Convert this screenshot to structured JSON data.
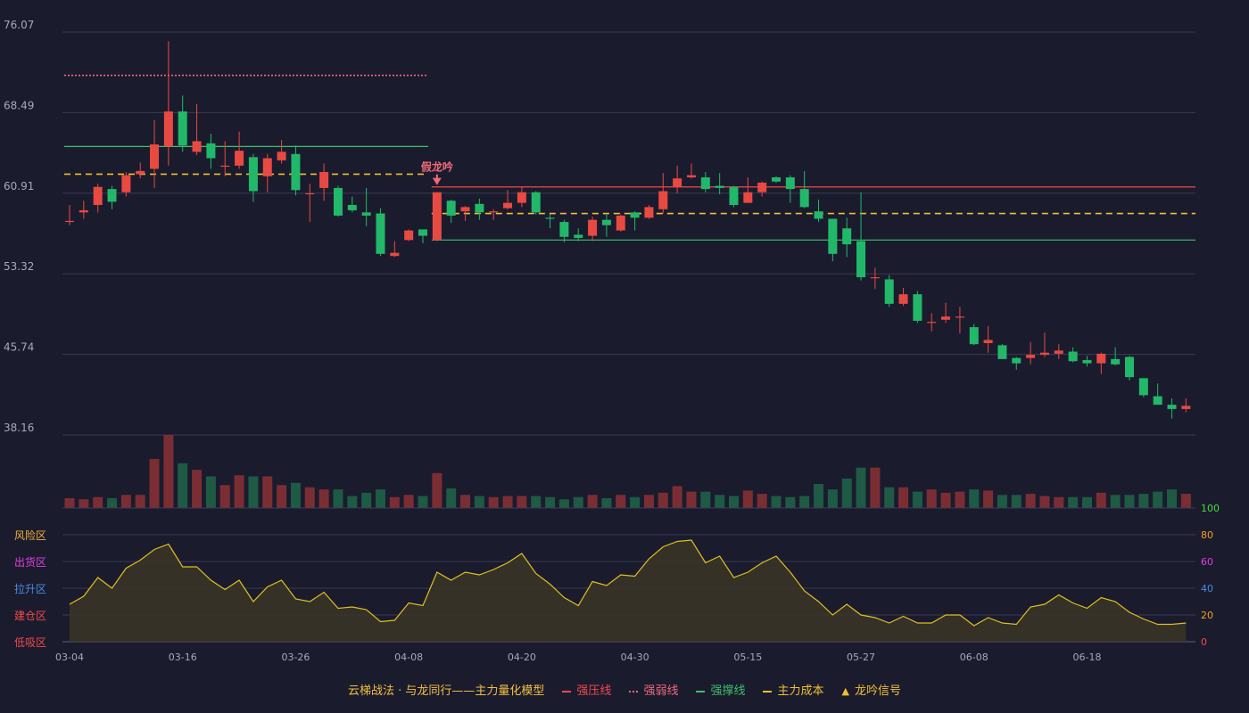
{
  "chart_data": [
    {
      "type": "candlestick",
      "y_axis": {
        "ylim": [
          38.16,
          76.07
        ],
        "ticks": [
          "76.07",
          "68.49",
          "60.91",
          "53.32",
          "45.74",
          "38.16"
        ]
      },
      "x_axis": {
        "ticks": [
          "03-04",
          "03-16",
          "03-26",
          "04-08",
          "04-20",
          "04-30",
          "05-15",
          "05-27",
          "06-08",
          "06-18"
        ]
      },
      "candles": [
        [
          58.2,
          58.3,
          59.8,
          57.9
        ],
        [
          59.1,
          59.3,
          60.2,
          58.5
        ],
        [
          59.8,
          61.5,
          61.8,
          59.1
        ],
        [
          61.3,
          60.1,
          61.6,
          59.4
        ],
        [
          61.0,
          62.6,
          62.9,
          60.6
        ],
        [
          62.7,
          63.0,
          63.8,
          62.3
        ],
        [
          63.2,
          65.5,
          67.8,
          61.4
        ],
        [
          65.3,
          68.6,
          75.2,
          63.5
        ],
        [
          68.6,
          65.4,
          70.1,
          64.8
        ],
        [
          64.8,
          65.8,
          69.3,
          64.5
        ],
        [
          65.6,
          64.2,
          66.5,
          63.2
        ],
        [
          63.4,
          63.5,
          65.8,
          62.5
        ],
        [
          63.5,
          64.9,
          66.7,
          63.2
        ],
        [
          64.3,
          61.1,
          64.6,
          60.1
        ],
        [
          62.5,
          64.2,
          64.6,
          61.0
        ],
        [
          64.0,
          64.8,
          65.9,
          63.7
        ],
        [
          64.6,
          61.2,
          65.4,
          60.7
        ],
        [
          60.8,
          60.9,
          61.8,
          58.2
        ],
        [
          61.4,
          62.9,
          63.7,
          60.2
        ],
        [
          61.4,
          58.8,
          61.6,
          58.7
        ],
        [
          59.8,
          59.3,
          60.6,
          59.1
        ],
        [
          59.1,
          58.8,
          61.4,
          57.8
        ],
        [
          59.0,
          55.2,
          59.5,
          55.0
        ],
        [
          55.0,
          55.3,
          56.4,
          54.9
        ],
        [
          56.5,
          57.4,
          57.5,
          56.4
        ],
        [
          57.5,
          56.9,
          57.4,
          56.2
        ],
        [
          56.5,
          61.0,
          61.0,
          56.4
        ],
        [
          60.2,
          58.8,
          60.3,
          58.1
        ],
        [
          59.2,
          59.6,
          59.7,
          58.3
        ],
        [
          59.9,
          59.1,
          60.4,
          58.4
        ],
        [
          59.1,
          59.2,
          59.4,
          58.4
        ],
        [
          59.5,
          60.0,
          61.2,
          59.4
        ],
        [
          60.0,
          61.0,
          61.5,
          59.6
        ],
        [
          61.0,
          59.1,
          61.1,
          58.9
        ],
        [
          58.6,
          58.5,
          58.9,
          57.6
        ],
        [
          58.2,
          56.8,
          58.4,
          56.3
        ],
        [
          57.0,
          56.7,
          57.6,
          56.4
        ],
        [
          56.9,
          58.4,
          58.7,
          56.4
        ],
        [
          58.4,
          57.9,
          59.0,
          56.8
        ],
        [
          57.4,
          58.8,
          58.9,
          57.3
        ],
        [
          59.1,
          58.6,
          59.2,
          57.4
        ],
        [
          58.6,
          59.6,
          59.8,
          58.5
        ],
        [
          59.4,
          61.1,
          62.8,
          59.0
        ],
        [
          61.5,
          62.3,
          63.5,
          60.9
        ],
        [
          62.4,
          62.6,
          63.7,
          62.3
        ],
        [
          62.4,
          61.3,
          62.9,
          61.0
        ],
        [
          61.6,
          61.4,
          62.8,
          60.8
        ],
        [
          61.5,
          59.8,
          61.6,
          59.6
        ],
        [
          60.0,
          61.0,
          62.4,
          60.0
        ],
        [
          61.0,
          61.9,
          62.0,
          60.6
        ],
        [
          62.4,
          62.0,
          62.5,
          61.9
        ],
        [
          62.4,
          61.3,
          62.6,
          60.0
        ],
        [
          61.3,
          59.6,
          63.0,
          59.5
        ],
        [
          59.2,
          58.5,
          60.3,
          58.2
        ],
        [
          58.5,
          55.2,
          58.4,
          54.5
        ],
        [
          57.6,
          56.1,
          58.6,
          54.9
        ],
        [
          56.4,
          53.0,
          61.0,
          52.7
        ],
        [
          53.0,
          53.0,
          53.9,
          51.9
        ],
        [
          52.8,
          50.5,
          53.2,
          50.2
        ],
        [
          50.5,
          51.4,
          52.0,
          50.3
        ],
        [
          51.4,
          48.9,
          51.7,
          48.7
        ],
        [
          48.7,
          48.8,
          49.6,
          47.9
        ],
        [
          49.0,
          49.3,
          50.6,
          48.7
        ],
        [
          49.3,
          49.3,
          50.2,
          47.7
        ],
        [
          48.3,
          46.7,
          48.6,
          46.6
        ],
        [
          46.8,
          47.1,
          48.4,
          45.9
        ],
        [
          46.6,
          45.3,
          46.7,
          45.3
        ],
        [
          45.4,
          44.9,
          45.5,
          44.3
        ],
        [
          45.4,
          45.7,
          46.9,
          44.8
        ],
        [
          45.7,
          45.9,
          47.8,
          45.5
        ],
        [
          45.8,
          46.1,
          46.7,
          45.3
        ],
        [
          46.0,
          45.1,
          46.4,
          45.0
        ],
        [
          45.2,
          44.9,
          45.6,
          44.6
        ],
        [
          44.9,
          45.8,
          45.9,
          43.9
        ],
        [
          45.3,
          44.8,
          46.4,
          44.7
        ],
        [
          45.5,
          43.6,
          45.6,
          43.3
        ],
        [
          43.5,
          41.9,
          43.5,
          41.7
        ],
        [
          41.8,
          41.0,
          43.0,
          41.0
        ],
        [
          41.0,
          40.6,
          41.6,
          39.7
        ],
        [
          40.6,
          40.9,
          41.6,
          40.3
        ]
      ],
      "volume": [
        9,
        8,
        10,
        9,
        12,
        12,
        45,
        67,
        41,
        35,
        29,
        21,
        30,
        29,
        29,
        21,
        23,
        19,
        17,
        17,
        11,
        14,
        17,
        10,
        12,
        11,
        32,
        18,
        12,
        11,
        10,
        11,
        11,
        11,
        10,
        8,
        10,
        12,
        9,
        12,
        10,
        12,
        14,
        20,
        15,
        15,
        12,
        11,
        16,
        13,
        11,
        10,
        11,
        22,
        17,
        27,
        37,
        37,
        19,
        19,
        15,
        17,
        14,
        15,
        17,
        16,
        12,
        12,
        13,
        11,
        10,
        10,
        10,
        14,
        12,
        12,
        13,
        15,
        17,
        13
      ],
      "indicator_ticks": [
        "风险区",
        "出货区",
        "拉升区",
        "建仓区",
        "低吸区"
      ],
      "indicator_values": [
        "100",
        "80",
        "60",
        "40",
        "20",
        "0"
      ],
      "overlay_lines": [
        {
          "name": "强压线",
          "color": "#f04a4a",
          "style": "solid",
          "from": 26,
          "to": 79,
          "value": 61.5
        },
        {
          "name": "强弱线",
          "color": "#f06a7a",
          "style": "dotted",
          "from": 0,
          "to": 25,
          "value": 72.0
        },
        {
          "name": "强撑线",
          "color": "#3cc06a",
          "style": "solid",
          "from": 0,
          "to": 25,
          "value": 65.3
        },
        {
          "name": "强撑线",
          "color": "#3cc06a",
          "style": "solid",
          "from": 26,
          "to": 79,
          "value": 56.5
        },
        {
          "name": "主力成本",
          "color": "#f0c030",
          "style": "dashed",
          "from": 0,
          "to": 25,
          "value": 62.7
        },
        {
          "name": "主力成本",
          "color": "#f0c030",
          "style": "dashed",
          "from": 26,
          "to": 79,
          "value": 59.0
        }
      ],
      "annotation": {
        "label": "假龙吟",
        "index": 26,
        "color": "#f06a7a"
      },
      "oscillator": [
        28,
        34,
        48,
        40,
        55,
        61,
        69,
        73,
        56,
        56,
        46,
        39,
        46,
        30,
        41,
        46,
        32,
        30,
        37,
        25,
        26,
        24,
        15,
        16,
        29,
        27,
        52,
        46,
        52,
        50,
        54,
        59,
        66,
        51,
        43,
        33,
        27,
        45,
        42,
        50,
        49,
        62,
        71,
        75,
        76,
        59,
        64,
        48,
        52,
        59,
        64,
        52,
        38,
        30,
        20,
        28,
        20,
        18,
        14,
        19,
        14,
        14,
        20,
        20,
        12,
        18,
        14,
        13,
        26,
        28,
        35,
        29,
        25,
        33,
        30,
        22,
        17,
        13,
        13,
        14
      ],
      "legend": [
        {
          "label": "云梯战法 · 与龙同行——主力量化模型",
          "color": "#f0c040"
        },
        {
          "label": "强压线",
          "color": "#f04a4a",
          "marker": "line"
        },
        {
          "label": "强弱线",
          "color": "#f06a7a",
          "marker": "dotted"
        },
        {
          "label": "强撑线",
          "color": "#3cc06a",
          "marker": "line"
        },
        {
          "label": "主力成本",
          "color": "#f0c030",
          "marker": "dashed"
        },
        {
          "label": "龙吟信号",
          "color": "#f0c030",
          "marker": "triangle"
        }
      ],
      "colors": {
        "up": "#e84a42",
        "down": "#22b86a",
        "grid": "#3a3a52",
        "axis_text": "#a8a8b8",
        "osc_line": "#e0c020",
        "volume_up": "#7a2e34",
        "volume_down": "#1e5a44",
        "zone_risk": "#f0b040",
        "zone_sell": "#e040e0",
        "zone_lift": "#4a8ae0",
        "zone_build": "#f04a4a",
        "zone_buy": "#f04a4a",
        "ind_100": "#40e040",
        "ind_80": "#f0a020",
        "ind_60": "#e040e0",
        "ind_40": "#4a8ae0",
        "ind_20": "#f0a020",
        "ind_0": "#f04a4a"
      }
    }
  ]
}
